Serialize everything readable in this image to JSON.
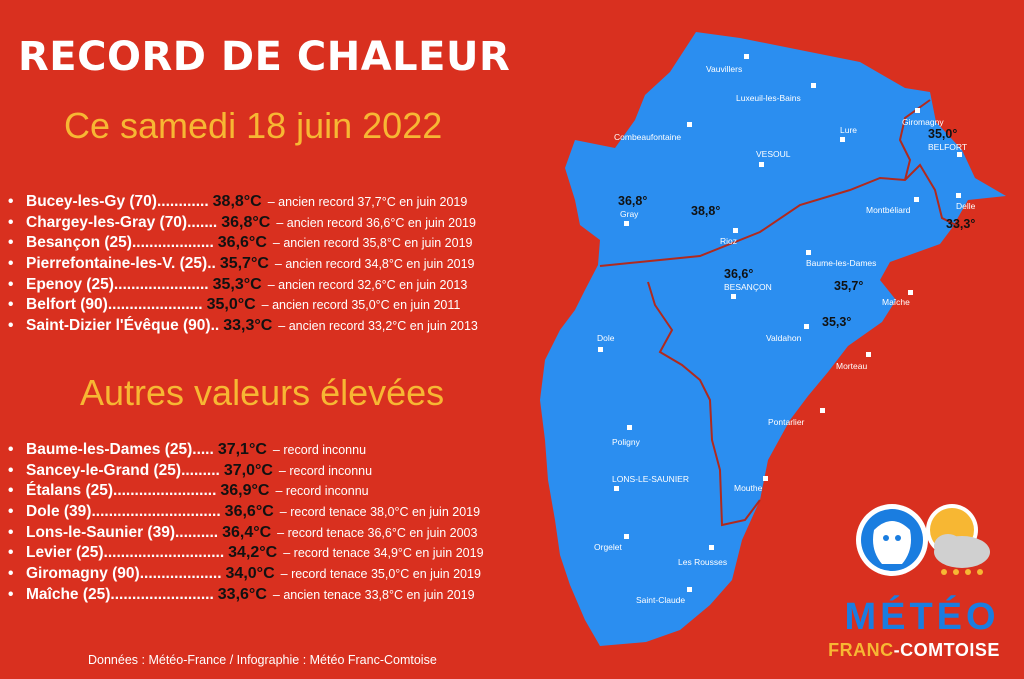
{
  "header": {
    "title": "RECORD DE CHALEUR",
    "subtitle": "Ce samedi 18 juin 2022"
  },
  "records": [
    {
      "city": "Bucey-les-Gy (70)",
      "dots": "............",
      "temp": "38,8°C",
      "note": "ancien record 37,7°C en juin 2019"
    },
    {
      "city": "Chargey-les-Gray (70)",
      "dots": ".......",
      "temp": "36,8°C",
      "note": "ancien record 36,6°C en juin 2019"
    },
    {
      "city": "Besançon (25)",
      "dots": "...................",
      "temp": "36,6°C",
      "note": "ancien record 35,8°C en juin 2019"
    },
    {
      "city": "Pierrefontaine-les-V. (25)",
      "dots": "..",
      "temp": "35,7°C",
      "note": "ancien record 34,8°C en juin 2019"
    },
    {
      "city": "Epenoy (25)",
      "dots": "......................",
      "temp": "35,3°C",
      "note": "ancien record 32,6°C en juin 2013"
    },
    {
      "city": "Belfort (90)",
      "dots": "......................",
      "temp": "35,0°C",
      "note": "ancien record 35,0°C en juin 2011"
    },
    {
      "city": "Saint-Dizier l'Évêque (90)",
      "dots": "..",
      "temp": "33,3°C",
      "note": "ancien record 33,2°C en juin 2013"
    }
  ],
  "others_title": "Autres valeurs élevées",
  "others": [
    {
      "city": "Baume-les-Dames (25)",
      "dots": ".....",
      "temp": "37,1°C",
      "note": "record inconnu"
    },
    {
      "city": "Sancey-le-Grand (25)",
      "dots": ".........",
      "temp": "37,0°C",
      "note": "record inconnu"
    },
    {
      "city": "Étalans (25)",
      "dots": "........................",
      "temp": "36,9°C",
      "note": "record inconnu"
    },
    {
      "city": "Dole (39)",
      "dots": "..............................",
      "temp": "36,6°C",
      "note": "record tenace 38,0°C en juin 2019"
    },
    {
      "city": "Lons-le-Saunier (39)",
      "dots": "..........",
      "temp": "36,4°C",
      "note": "record tenace 36,6°C en juin 2003"
    },
    {
      "city": "Levier (25)",
      "dots": "............................",
      "temp": "34,2°C",
      "note": "record tenace 34,9°C en juin 2019"
    },
    {
      "city": "Giromagny (90)",
      "dots": "...................",
      "temp": "34,0°C",
      "note": "record tenace 35,0°C en juin 2019"
    },
    {
      "city": "Maîche (25)",
      "dots": "........................",
      "temp": "33,6°C",
      "note": "ancien tenace 33,8°C en juin 2019"
    }
  ],
  "footer": "Données : Météo-France / Infographie : Météo Franc-Comtoise",
  "map": {
    "towns": {
      "vauvillers": "Vauvillers",
      "luxeuil": "Luxeuil-les-Bains",
      "combeaufontaine": "Combeaufontaine",
      "lure": "Lure",
      "giromagny": "Giromagny",
      "belfort": "BELFORT",
      "vesoul": "VESOUL",
      "delle": "Delle",
      "gray": "Gray",
      "montbeliard": "Montbéliard",
      "rioz": "Rioz",
      "baume": "Baume-les-Dames",
      "besancon": "BESANÇON",
      "maiche": "Maîche",
      "dole": "Dole",
      "valdahon": "Valdahon",
      "morteau": "Morteau",
      "pontarlier": "Pontarlier",
      "poligny": "Poligny",
      "lons": "LONS-LE-SAUNIER",
      "mouthe": "Mouthe",
      "orgelet": "Orgelet",
      "rousses": "Les Rousses",
      "saintclaude": "Saint-Claude"
    },
    "values": {
      "belfort": "35,0°",
      "gray": "36,8°",
      "bucey": "38,8°",
      "delle": "33,3°",
      "besancon": "36,6°",
      "pierrefontaine": "35,7°",
      "epenoy": "35,3°"
    }
  },
  "logo": {
    "word1": "MÉTÉO",
    "word2a": "FRANC",
    "word2b": "-COMTOISE"
  },
  "colors": {
    "background": "#d9301f",
    "map_fill": "#2b8ef0",
    "accent_yellow": "#f7b733",
    "border_line": "#b02a1e"
  }
}
